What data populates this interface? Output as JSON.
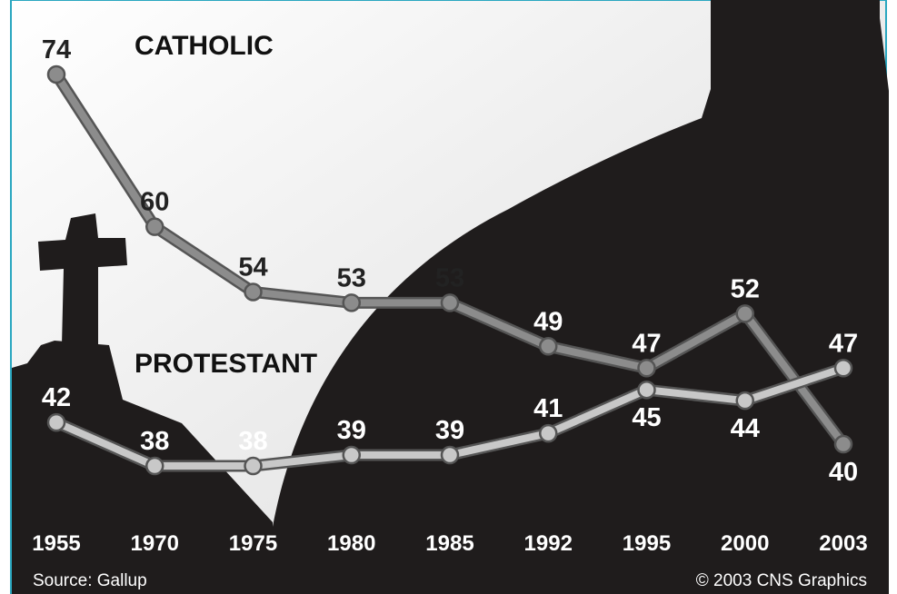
{
  "chart_data": {
    "type": "line",
    "categories": [
      "1955",
      "1970",
      "1975",
      "1980",
      "1985",
      "1992",
      "1995",
      "2000",
      "2003"
    ],
    "series": [
      {
        "name": "CATHOLIC",
        "color": "#8c8c8c",
        "values": [
          74,
          60,
          54,
          53,
          53,
          49,
          47,
          52,
          40
        ]
      },
      {
        "name": "PROTESTANT",
        "color": "#c8c8c8",
        "values": [
          42,
          38,
          38,
          39,
          39,
          41,
          45,
          44,
          47
        ]
      }
    ],
    "source": "Source: Gallup",
    "credit": "© 2003 CNS Graphics"
  }
}
